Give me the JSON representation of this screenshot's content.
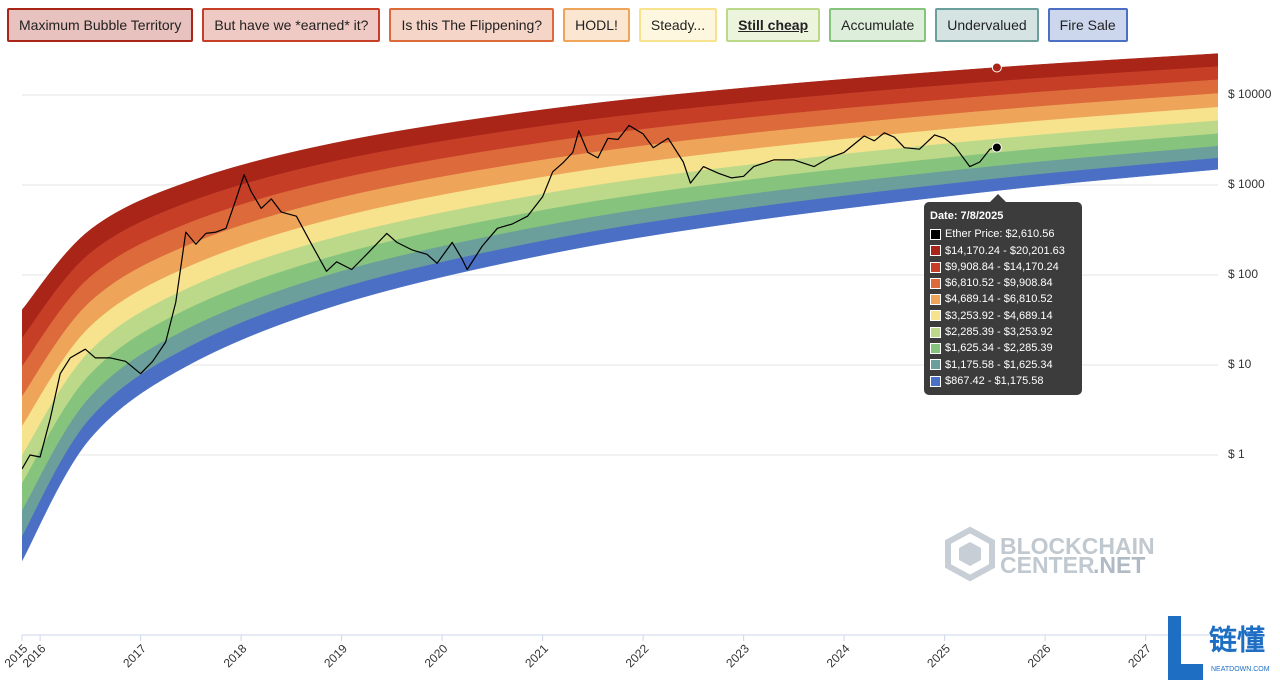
{
  "chart_data": {
    "type": "rainbow",
    "yscale": "log",
    "grid": true,
    "series": [
      {
        "name": "Maximum Bubble Territory",
        "color": "#a82518"
      },
      {
        "name": "But have we *earned* it?",
        "color": "#c73e27"
      },
      {
        "name": "Is this The Flippening?",
        "color": "#dc6a3a"
      },
      {
        "name": "HODL!",
        "color": "#eea55a"
      },
      {
        "name": "Steady...",
        "color": "#f7e38d"
      },
      {
        "name": "Still cheap",
        "color": "#bcd98a"
      },
      {
        "name": "Accumulate",
        "color": "#86c47d"
      },
      {
        "name": "Undervalued",
        "color": "#6a9f9b"
      },
      {
        "name": "Fire Sale",
        "color": "#4a6fc4"
      }
    ],
    "band_x": [
      2015.82,
      2016.5,
      2017.5,
      2019,
      2021,
      2023,
      2025.52,
      2027.72
    ],
    "boundaries": [
      [
        0.0668,
        1.533,
        10.31,
        48.07,
        166.5,
        390.8,
        867.42,
        1496
      ],
      [
        0.124,
        2.567,
        16.2,
        71.74,
        238.5,
        544.0,
        1175.58,
        1991
      ],
      [
        0.24,
        4.444,
        26.21,
        109.9,
        349.6,
        773.4,
        1625.34,
        2700
      ],
      [
        0.481,
        7.921,
        43.51,
        172.2,
        522.9,
        1121,
        2285.39,
        3720
      ],
      [
        0.989,
        14.42,
        73.55,
        274.2,
        793.2,
        1645,
        3253.92,
        5183
      ],
      [
        2.084,
        26.79,
        126.6,
        443.7,
        1222,
        2447,
        4689.14,
        7308
      ],
      [
        4.46,
        50.44,
        220.4,
        725.4,
        1898,
        3673,
        6810.52,
        10380
      ],
      [
        9.577,
        95.2,
        384.7,
        1188,
        2954,
        5520,
        9908.84,
        14760
      ],
      [
        19.87,
        174.7,
        654.9,
        1904,
        4508,
        8145,
        14170.24,
        20660
      ],
      [
        40.93,
        318.4,
        1109,
        3037,
        6849,
        11970,
        20201.63,
        28830
      ]
    ],
    "price": {
      "color": "#000000",
      "x": [
        2015.82,
        2015.9,
        2016.0,
        2016.1,
        2016.2,
        2016.3,
        2016.45,
        2016.55,
        2016.7,
        2016.85,
        2017.0,
        2017.12,
        2017.25,
        2017.35,
        2017.45,
        2017.55,
        2017.65,
        2017.75,
        2017.85,
        2017.95,
        2018.03,
        2018.1,
        2018.2,
        2018.3,
        2018.4,
        2018.55,
        2018.7,
        2018.85,
        2018.95,
        2019.1,
        2019.25,
        2019.45,
        2019.55,
        2019.7,
        2019.85,
        2019.95,
        2020.1,
        2020.2,
        2020.25,
        2020.4,
        2020.55,
        2020.7,
        2020.85,
        2021.0,
        2021.1,
        2021.2,
        2021.3,
        2021.36,
        2021.45,
        2021.55,
        2021.65,
        2021.75,
        2021.86,
        2022.0,
        2022.1,
        2022.25,
        2022.4,
        2022.47,
        2022.6,
        2022.75,
        2022.88,
        2023.0,
        2023.1,
        2023.3,
        2023.5,
        2023.7,
        2023.85,
        2024.0,
        2024.2,
        2024.3,
        2024.4,
        2024.5,
        2024.6,
        2024.75,
        2024.9,
        2025.0,
        2025.1,
        2025.25,
        2025.35,
        2025.45,
        2025.52
      ],
      "values": [
        0.7,
        1.0,
        0.95,
        2.5,
        8,
        12,
        15,
        12,
        12,
        11,
        8,
        11,
        18,
        50,
        300,
        220,
        290,
        300,
        330,
        700,
        1300,
        850,
        550,
        700,
        500,
        450,
        220,
        110,
        140,
        115,
        170,
        290,
        230,
        190,
        170,
        135,
        230,
        150,
        115,
        210,
        330,
        370,
        450,
        740,
        1400,
        1750,
        2300,
        4000,
        2300,
        2000,
        3300,
        3200,
        4600,
        3700,
        2600,
        3300,
        1800,
        1050,
        1600,
        1350,
        1200,
        1250,
        1600,
        1900,
        1900,
        1600,
        2000,
        2300,
        3500,
        3100,
        3800,
        3400,
        2600,
        2500,
        3600,
        3300,
        2700,
        1600,
        1800,
        2500,
        2610.56
      ]
    },
    "xlim": [
      2015.82,
      2027.72
    ],
    "xticks": [
      {
        "value": 2015.82,
        "label": "2015"
      },
      2016,
      2017,
      2018,
      2019,
      2020,
      2021,
      2022,
      2023,
      2024,
      2025,
      2026,
      2027
    ],
    "ylim": [
      0.01,
      31622.78
    ],
    "yticks": [
      {
        "value": 1,
        "label": "$ 1"
      },
      {
        "value": 10,
        "label": "$ 10"
      },
      {
        "value": 100,
        "label": "$ 100"
      },
      {
        "value": 1000,
        "label": "$ 1000"
      },
      {
        "value": 10000,
        "label": "$ 10000"
      }
    ],
    "tooltip": {
      "title": "Date: 7/8/2025",
      "items": [
        "Ether Price: $2,610.56",
        "$14,170.24 - $20,201.63",
        "$9,908.84 - $14,170.24",
        "$6,810.52 - $9,908.84",
        "$4,689.14 - $6,810.52",
        "$3,253.92 - $4,689.14",
        "$2,285.39 - $3,253.92",
        "$1,625.34 - $2,285.39",
        "$1,175.58 - $1,625.34",
        "$867.42 - $1,175.58"
      ]
    }
  },
  "watermark": {
    "word1": "BLOCKCHAIN",
    "word2": "CENTER",
    "word3": ".NET"
  },
  "brand": {
    "name": "链懂",
    "site": "NEATDOWN.COM"
  }
}
